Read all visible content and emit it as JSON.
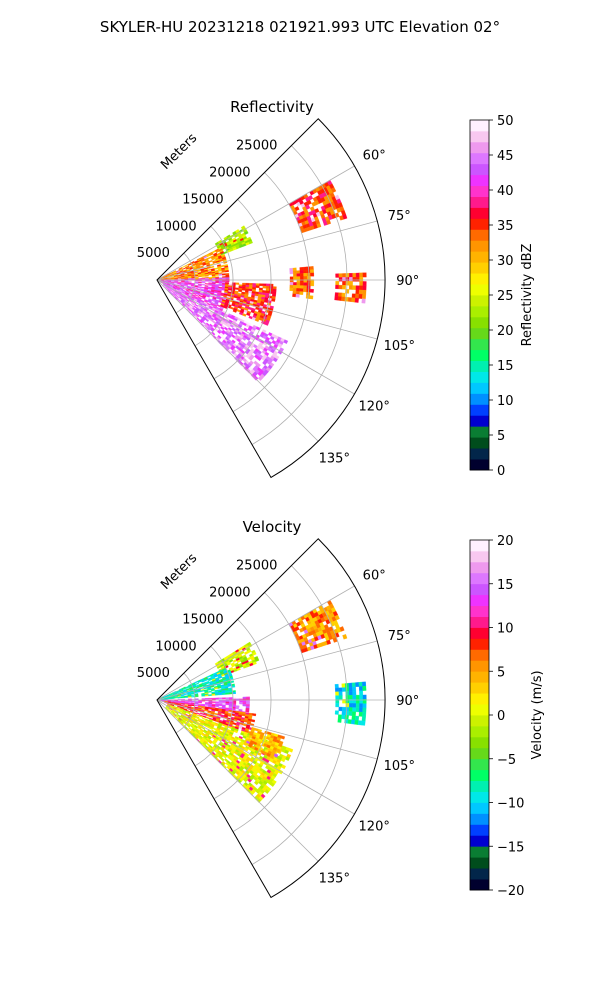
{
  "figure": {
    "suptitle": "SKYLER-HU  20231218  021921.993 UTC Elevation 02°"
  },
  "chart_data": [
    {
      "type": "polar-sector",
      "title": "Reflectivity",
      "radial_label": "Meters",
      "theta_range_deg": [
        45,
        150
      ],
      "theta_ticks": [
        "60°",
        "75°",
        "90°",
        "105°",
        "120°",
        "135°"
      ],
      "theta_tick_values": [
        60,
        75,
        90,
        105,
        120,
        135
      ],
      "r_max": 30000,
      "r_ticks": [
        "5000",
        "10000",
        "15000",
        "20000",
        "25000"
      ],
      "r_tick_values": [
        5000,
        10000,
        15000,
        20000,
        25000
      ],
      "grid": true,
      "colorbar": {
        "label": "Reflectivity dBZ",
        "range": [
          0,
          50
        ],
        "ticks": [
          "0",
          "5",
          "10",
          "15",
          "20",
          "25",
          "30",
          "35",
          "40",
          "45",
          "50"
        ],
        "colors": [
          "#00002e",
          "#02264a",
          "#004d1c",
          "#0a7d33",
          "#0000d0",
          "#0040ff",
          "#0090ff",
          "#00c8ff",
          "#00e8e8",
          "#00f0b0",
          "#00ff66",
          "#33e64d",
          "#66d91a",
          "#88e000",
          "#aaee00",
          "#ccf200",
          "#eeff00",
          "#fff000",
          "#ffd000",
          "#ffb300",
          "#ff9500",
          "#ff6a00",
          "#ff2200",
          "#ff0030",
          "#ff1a8c",
          "#ff33cc",
          "#ee33ff",
          "#cc55ff",
          "#dd77ff",
          "#ee99ee",
          "#f8c8f0",
          "#fff0ff"
        ]
      },
      "echo_regions": [
        {
          "theta_deg": [
            58,
            68
          ],
          "r": [
            9000,
            13500
          ],
          "level": 14
        },
        {
          "theta_deg": [
            63,
            90
          ],
          "r": [
            500,
            9500
          ],
          "level": 20
        },
        {
          "theta_deg": [
            88,
            118
          ],
          "r": [
            500,
            9500
          ],
          "level": 26
        },
        {
          "theta_deg": [
            115,
            135
          ],
          "r": [
            1000,
            19000
          ],
          "level": 28
        },
        {
          "theta_deg": [
            92,
            112
          ],
          "r": [
            9000,
            15500
          ],
          "level": 22
        },
        {
          "theta_deg": [
            85,
            96
          ],
          "r": [
            17500,
            20500
          ],
          "level": 21
        },
        {
          "theta_deg": [
            88,
            96
          ],
          "r": [
            23500,
            27500
          ],
          "level": 21
        },
        {
          "theta_deg": [
            60,
            72
          ],
          "r": [
            20000,
            26000
          ],
          "level": 22
        }
      ]
    },
    {
      "type": "polar-sector",
      "title": "Velocity",
      "radial_label": "Meters",
      "theta_range_deg": [
        45,
        150
      ],
      "theta_ticks": [
        "60°",
        "75°",
        "90°",
        "105°",
        "120°",
        "135°"
      ],
      "theta_tick_values": [
        60,
        75,
        90,
        105,
        120,
        135
      ],
      "r_max": 30000,
      "r_ticks": [
        "5000",
        "10000",
        "15000",
        "20000",
        "25000"
      ],
      "r_tick_values": [
        5000,
        10000,
        15000,
        20000,
        25000
      ],
      "grid": true,
      "colorbar": {
        "label": "Velocity (m/s)",
        "range": [
          -20,
          20
        ],
        "ticks": [
          "−20",
          "−15",
          "−10",
          "−5",
          "0",
          "5",
          "10",
          "15",
          "20"
        ],
        "colors": [
          "#00002e",
          "#02264a",
          "#004d1c",
          "#0a7d33",
          "#0000d0",
          "#0040ff",
          "#0090ff",
          "#00c8ff",
          "#00e8e8",
          "#00f0b0",
          "#00ff66",
          "#33e64d",
          "#66d91a",
          "#88e000",
          "#aaee00",
          "#ccf200",
          "#eeff00",
          "#fff000",
          "#ffd000",
          "#ffb300",
          "#ff9500",
          "#ff6a00",
          "#ff2200",
          "#ff0030",
          "#ff1a8c",
          "#ff33cc",
          "#ee33ff",
          "#cc55ff",
          "#dd77ff",
          "#ee99ee",
          "#f8c8f0",
          "#fff0ff"
        ]
      },
      "echo_regions": [
        {
          "theta_deg": [
            58,
            70
          ],
          "r": [
            9000,
            14000
          ],
          "level": 15
        },
        {
          "theta_deg": [
            65,
            85
          ],
          "r": [
            500,
            10000
          ],
          "level": 9
        },
        {
          "theta_deg": [
            88,
            100
          ],
          "r": [
            500,
            12000
          ],
          "level": 26
        },
        {
          "theta_deg": [
            98,
            110
          ],
          "r": [
            1000,
            13000
          ],
          "level": 22
        },
        {
          "theta_deg": [
            110,
            135
          ],
          "r": [
            1500,
            19000
          ],
          "level": 16
        },
        {
          "theta_deg": [
            106,
            116
          ],
          "r": [
            13000,
            17500
          ],
          "level": 19
        },
        {
          "theta_deg": [
            85,
            96
          ],
          "r": [
            23500,
            27500
          ],
          "level": 8
        },
        {
          "theta_deg": [
            60,
            72
          ],
          "r": [
            20000,
            26000
          ],
          "level": 20
        }
      ]
    }
  ]
}
